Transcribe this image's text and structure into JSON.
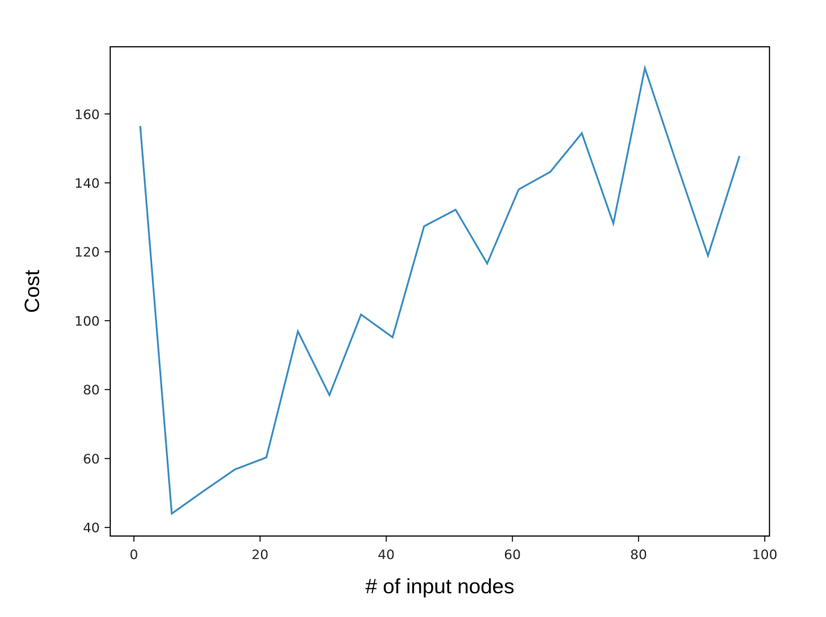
{
  "chart_data": {
    "type": "line",
    "title": "",
    "xlabel": "# of input nodes",
    "ylabel": "Cost",
    "xlim": [
      -3.75,
      100.75
    ],
    "ylim": [
      37.5,
      179.5
    ],
    "x_ticks": [
      0,
      20,
      40,
      60,
      80,
      100
    ],
    "y_ticks": [
      40,
      60,
      80,
      100,
      120,
      140,
      160
    ],
    "x_tick_labels": [
      "0",
      "20",
      "40",
      "60",
      "80",
      "100"
    ],
    "y_tick_labels": [
      "40",
      "60",
      "80",
      "100",
      "120",
      "140",
      "160"
    ],
    "grid": false,
    "legend": "none",
    "series": [
      {
        "color": "#3a8dc1",
        "x": [
          1,
          6,
          11,
          16,
          21,
          26,
          31,
          36,
          41,
          46,
          51,
          56,
          61,
          66,
          71,
          76,
          81,
          86,
          91,
          96
        ],
        "y": [
          156.5,
          44,
          50.5,
          56.8,
          60.3,
          96.9,
          78.4,
          101.8,
          95.2,
          127.4,
          132.2,
          116.6,
          138.1,
          143.2,
          154.4,
          128.2,
          173.3,
          145.8,
          118.9,
          147.8
        ]
      }
    ]
  }
}
